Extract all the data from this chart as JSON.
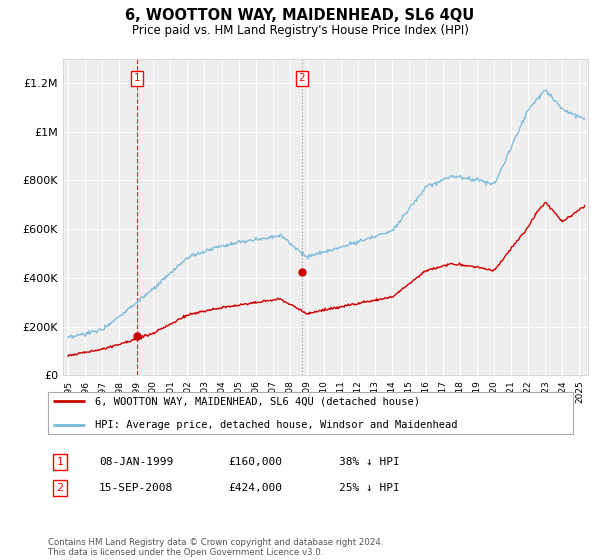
{
  "title": "6, WOOTTON WAY, MAIDENHEAD, SL6 4QU",
  "subtitle": "Price paid vs. HM Land Registry's House Price Index (HPI)",
  "legend_line1": "6, WOOTTON WAY, MAIDENHEAD, SL6 4QU (detached house)",
  "legend_line2": "HPI: Average price, detached house, Windsor and Maidenhead",
  "transaction1_label": "1",
  "transaction1_date": "08-JAN-1999",
  "transaction1_price": "£160,000",
  "transaction1_hpi": "38% ↓ HPI",
  "transaction2_label": "2",
  "transaction2_date": "15-SEP-2008",
  "transaction2_price": "£424,000",
  "transaction2_hpi": "25% ↓ HPI",
  "footnote": "Contains HM Land Registry data © Crown copyright and database right 2024.\nThis data is licensed under the Open Government Licence v3.0.",
  "marker1_year": 1999.03,
  "marker1_hpi_value": 160000,
  "marker2_year": 2008.71,
  "marker2_hpi_value": 424000,
  "vline1_year": 1999.03,
  "vline2_year": 2008.71,
  "hpi_color": "#78b8d8",
  "price_color": "#cc0000",
  "vline1_color": "#cc0000",
  "vline2_color": "#999999",
  "ylim": [
    0,
    1300000
  ],
  "xlim_start": 1994.7,
  "xlim_end": 2025.5,
  "background_color": "#ffffff",
  "plot_bg_color": "#eeeeee"
}
